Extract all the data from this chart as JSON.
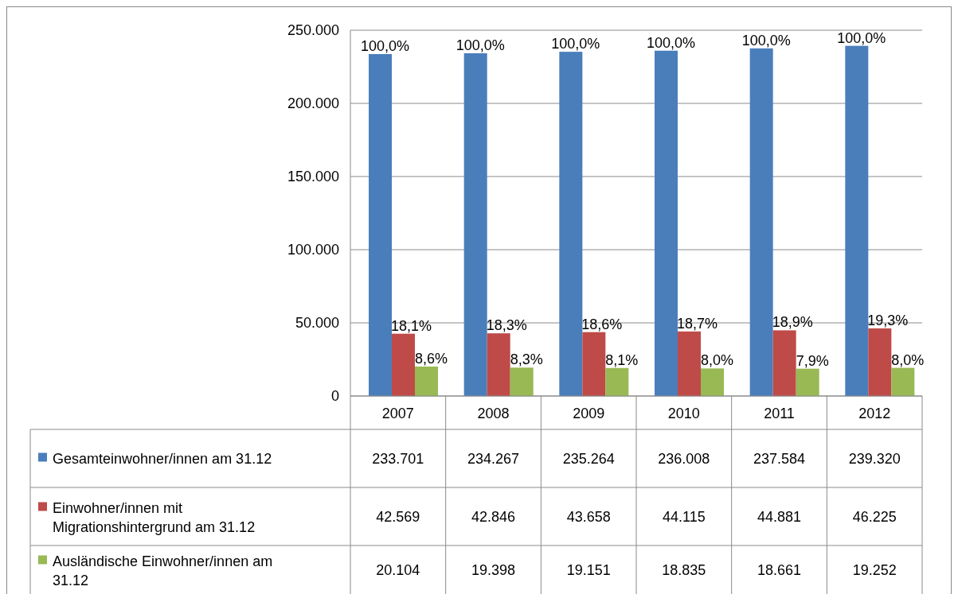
{
  "chart_data": {
    "type": "bar",
    "categories": [
      "2007",
      "2008",
      "2009",
      "2010",
      "2011",
      "2012"
    ],
    "series": [
      {
        "name": "Gesamteinwohner/innen am 31.12",
        "color": "#4a7ebb",
        "values": [
          233701,
          234267,
          235264,
          236008,
          237584,
          239320
        ],
        "value_labels": [
          "233.701",
          "234.267",
          "235.264",
          "236.008",
          "237.584",
          "239.320"
        ]
      },
      {
        "name": "Einwohner/innen mit Migrationshintergrund am 31.12",
        "color": "#be4b48",
        "values": [
          42569,
          42846,
          43658,
          44115,
          44881,
          46225
        ],
        "value_labels": [
          "42.569",
          "42.846",
          "43.658",
          "44.115",
          "44.881",
          "46.225"
        ]
      },
      {
        "name": "Ausländische Einwohner/innen am 31.12",
        "color": "#98b954",
        "values": [
          20104,
          19398,
          19151,
          18835,
          18661,
          19252
        ],
        "value_labels": [
          "20.104",
          "19.398",
          "19.151",
          "18.835",
          "18.661",
          "19.252"
        ]
      }
    ],
    "annotations": [
      "100,0%",
      "100,0%",
      "100,0%",
      "100,0%",
      "100,0%",
      "100,0%",
      {
        "text": "18,1%",
        "x": "2007",
        "y": 42569
      },
      {
        "text": "18,3%",
        "x": "2008",
        "y": 42846
      },
      {
        "text": "18,6%",
        "x": "2009",
        "y": 43658
      },
      {
        "text": "18,7%",
        "x": "2010",
        "y": 44115
      },
      {
        "text": "18,9%",
        "x": "2011",
        "y": 44881
      },
      {
        "text": "19,3%",
        "x": "2012",
        "y": 46225
      },
      "8,6%",
      "8,3%",
      "8,1%",
      "8,0%",
      "7,9%",
      "8,0%"
    ],
    "ylim": [
      0,
      250000
    ],
    "yticks": [
      0,
      {
        "value": 50000,
        "label": "50.000"
      },
      {
        "value": 100000,
        "label": "100.000"
      },
      {
        "value": 150000,
        "label": "150.000"
      },
      {
        "value": 200000,
        "label": "200.000"
      },
      {
        "value": 250000,
        "label": "250.000"
      }
    ],
    "grid": "y",
    "legend": "bottom",
    "data_labels": true
  }
}
